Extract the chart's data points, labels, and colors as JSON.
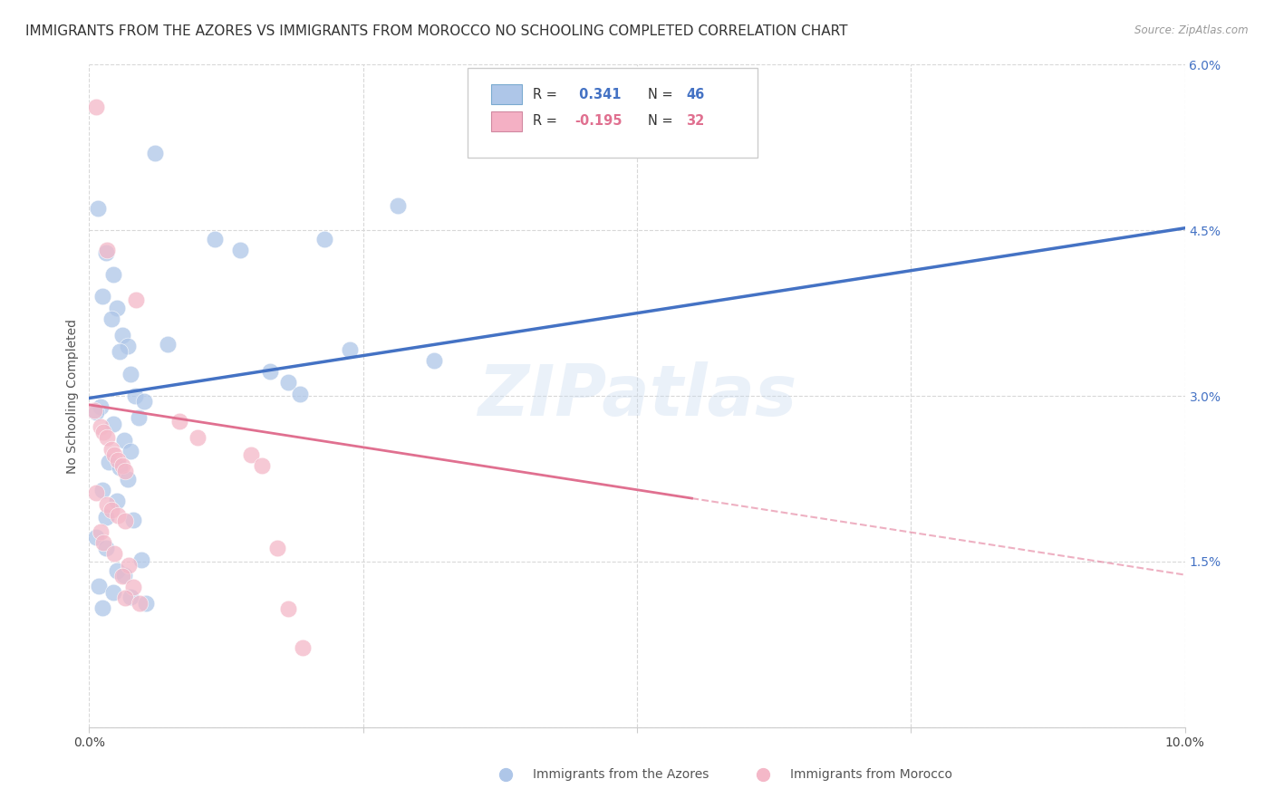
{
  "title": "IMMIGRANTS FROM THE AZORES VS IMMIGRANTS FROM MOROCCO NO SCHOOLING COMPLETED CORRELATION CHART",
  "source": "Source: ZipAtlas.com",
  "ylabel": "No Schooling Completed",
  "watermark": "ZIPatlas",
  "blue_scatter": [
    [
      0.08,
      4.7
    ],
    [
      0.15,
      4.3
    ],
    [
      0.22,
      4.1
    ],
    [
      0.25,
      3.8
    ],
    [
      0.3,
      3.55
    ],
    [
      0.35,
      3.45
    ],
    [
      0.38,
      3.2
    ],
    [
      0.42,
      3.0
    ],
    [
      0.5,
      2.95
    ],
    [
      0.12,
      3.9
    ],
    [
      0.2,
      3.7
    ],
    [
      0.28,
      3.4
    ],
    [
      0.45,
      2.8
    ],
    [
      0.1,
      2.9
    ],
    [
      0.22,
      2.75
    ],
    [
      0.32,
      2.6
    ],
    [
      0.06,
      2.85
    ],
    [
      0.18,
      2.4
    ],
    [
      0.28,
      2.35
    ],
    [
      0.35,
      2.25
    ],
    [
      0.12,
      2.15
    ],
    [
      0.25,
      2.05
    ],
    [
      0.38,
      2.5
    ],
    [
      0.15,
      1.9
    ],
    [
      0.4,
      1.88
    ],
    [
      0.06,
      1.72
    ],
    [
      0.15,
      1.62
    ],
    [
      0.48,
      1.52
    ],
    [
      0.25,
      1.42
    ],
    [
      0.32,
      1.38
    ],
    [
      0.09,
      1.28
    ],
    [
      0.22,
      1.22
    ],
    [
      0.38,
      1.18
    ],
    [
      0.52,
      1.12
    ],
    [
      0.12,
      1.08
    ],
    [
      0.6,
      5.2
    ],
    [
      1.15,
      4.42
    ],
    [
      1.38,
      4.32
    ],
    [
      1.65,
      3.22
    ],
    [
      1.82,
      3.12
    ],
    [
      1.92,
      3.02
    ],
    [
      2.15,
      4.42
    ],
    [
      2.38,
      3.42
    ],
    [
      2.82,
      4.72
    ],
    [
      3.15,
      3.32
    ],
    [
      0.72,
      3.47
    ]
  ],
  "pink_scatter": [
    [
      0.05,
      2.87
    ],
    [
      0.1,
      2.72
    ],
    [
      0.13,
      2.67
    ],
    [
      0.16,
      2.62
    ],
    [
      0.2,
      2.52
    ],
    [
      0.23,
      2.47
    ],
    [
      0.26,
      2.42
    ],
    [
      0.3,
      2.37
    ],
    [
      0.33,
      2.32
    ],
    [
      0.06,
      2.12
    ],
    [
      0.16,
      2.02
    ],
    [
      0.2,
      1.97
    ],
    [
      0.26,
      1.92
    ],
    [
      0.33,
      1.87
    ],
    [
      0.1,
      1.77
    ],
    [
      0.13,
      1.67
    ],
    [
      0.23,
      1.57
    ],
    [
      0.36,
      1.47
    ],
    [
      0.3,
      1.37
    ],
    [
      0.4,
      1.27
    ],
    [
      0.06,
      5.62
    ],
    [
      0.16,
      4.32
    ],
    [
      0.43,
      3.87
    ],
    [
      0.82,
      2.77
    ],
    [
      0.99,
      2.62
    ],
    [
      1.48,
      2.47
    ],
    [
      1.58,
      2.37
    ],
    [
      1.72,
      1.62
    ],
    [
      1.82,
      1.07
    ],
    [
      1.95,
      0.72
    ],
    [
      0.33,
      1.17
    ],
    [
      0.46,
      1.12
    ]
  ],
  "xlim": [
    0,
    10
  ],
  "ylim": [
    0,
    6
  ],
  "xtick_positions": [
    0,
    2.5,
    5.0,
    7.5,
    10
  ],
  "xtick_labels": [
    "0.0%",
    "",
    "",
    "",
    "10.0%"
  ],
  "ytick_positions": [
    0,
    1.5,
    3.0,
    4.5,
    6.0
  ],
  "ytick_labels": [
    "",
    "1.5%",
    "3.0%",
    "4.5%",
    "6.0%"
  ],
  "grid_color": "#d8d8d8",
  "blue_line_color": "#4472c4",
  "pink_line_color": "#e07090",
  "blue_marker_color": "#aec6e8",
  "pink_marker_color": "#f4b8c8",
  "background_color": "#ffffff",
  "title_fontsize": 11,
  "axis_label_fontsize": 10,
  "tick_fontsize": 10,
  "legend_box_blue": "#aec6e8",
  "legend_box_pink": "#f4b0c4",
  "blue_line_y0": 2.98,
  "blue_line_y1": 4.52,
  "pink_line_y0": 2.92,
  "pink_line_y1": 1.38,
  "pink_solid_xmax": 5.5,
  "marker_size": 180,
  "marker_alpha": 0.75
}
